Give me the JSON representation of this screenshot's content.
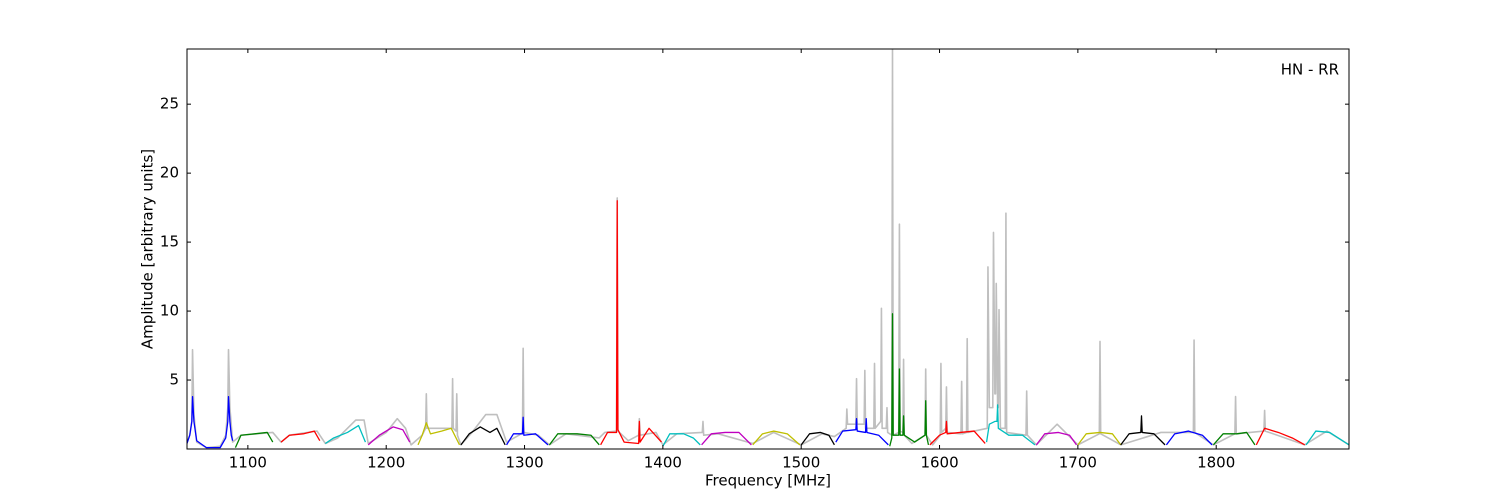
{
  "chart_data": {
    "type": "line",
    "annotation": "HN - RR",
    "xlabel": "Frequency [MHz]",
    "ylabel": "Amplitude [arbitrary units]",
    "xlim": [
      1056,
      1896
    ],
    "xticks": [
      1100,
      1200,
      1300,
      1400,
      1500,
      1600,
      1700,
      1800
    ],
    "ylim": [
      0,
      29
    ],
    "yticks": [
      5,
      10,
      15,
      20,
      25
    ],
    "grid": false,
    "series": [
      {
        "color": "#bfbfbf",
        "x": [
          1056,
          1058,
          1059.5,
          1060,
          1061,
          1063,
          1070,
          1080,
          1084,
          1085.5,
          1086,
          1087,
          1089,
          1095,
          1118,
          1124,
          1130,
          1150,
          1156,
          1165,
          1178,
          1184,
          1187,
          1200,
          1208,
          1214,
          1218,
          1226,
          1228.5,
          1229,
          1229.5,
          1238,
          1247.5,
          1248,
          1248.5,
          1250.5,
          1251,
          1251.5,
          1254,
          1262,
          1272,
          1280,
          1287,
          1296,
          1298.5,
          1299,
          1299.5,
          1310,
          1318,
          1330,
          1354,
          1358,
          1366.5,
          1367,
          1367.5,
          1375,
          1382.5,
          1383,
          1383.5,
          1395,
          1400,
          1410,
          1428.5,
          1429,
          1429.5,
          1440,
          1465,
          1480,
          1500,
          1515,
          1524,
          1532.5,
          1533,
          1533.5,
          1539.5,
          1540,
          1540.5,
          1545.5,
          1546,
          1546.5,
          1552.5,
          1553,
          1553.5,
          1557.5,
          1558,
          1558.5,
          1561.5,
          1562,
          1562.5,
          1565.5,
          1566,
          1566.5,
          1570.5,
          1571,
          1571.5,
          1573.5,
          1574,
          1574.5,
          1580,
          1589.5,
          1590,
          1590.5,
          1595,
          1600.5,
          1601,
          1601.5,
          1604.5,
          1605,
          1605.5,
          1615.5,
          1616,
          1616.5,
          1619.5,
          1620,
          1620.5,
          1634.5,
          1635,
          1636,
          1638.5,
          1639,
          1640,
          1640.5,
          1641,
          1642,
          1642.5,
          1643,
          1644,
          1647.5,
          1648,
          1648.5,
          1662.5,
          1663,
          1663.5,
          1670,
          1685,
          1700,
          1715.5,
          1716,
          1716.5,
          1731,
          1760,
          1783.5,
          1784,
          1784.5,
          1798,
          1813.5,
          1814,
          1814.5,
          1834.5,
          1835,
          1835.5,
          1864,
          1880,
          1896
        ],
        "values": [
          0.5,
          1,
          2,
          7.2,
          2.5,
          0.5,
          0.1,
          0.2,
          1,
          3,
          7.2,
          3,
          0.5,
          1,
          1.2,
          0.5,
          1,
          1.3,
          0.4,
          0.8,
          2.1,
          2.1,
          0.4,
          1.2,
          2.2,
          1.5,
          0.3,
          1,
          1.5,
          4,
          1.5,
          1.5,
          1.5,
          5.1,
          1.5,
          1.3,
          4,
          1,
          0.3,
          1.2,
          2.5,
          2.5,
          0.5,
          1,
          1.2,
          7.3,
          1.2,
          1,
          0.3,
          1.1,
          0.8,
          1.2,
          1.3,
          18.2,
          1.3,
          0.6,
          1,
          2.2,
          1,
          1.2,
          0.3,
          1.1,
          1.2,
          2,
          1,
          1.1,
          0.4,
          1.2,
          0.3,
          1.1,
          0.9,
          1.5,
          2.9,
          1.8,
          1.8,
          5.1,
          1.8,
          1.8,
          5.7,
          1.5,
          1.5,
          6.2,
          1.5,
          2,
          10.2,
          1.5,
          1.5,
          3,
          1.2,
          1,
          29,
          1,
          1.2,
          16.3,
          1.3,
          1.2,
          6.5,
          1,
          0.4,
          1,
          5.8,
          1,
          0.3,
          1,
          6.2,
          1.2,
          1.5,
          4.5,
          1.2,
          1.1,
          4.9,
          1.1,
          1.2,
          8,
          1.2,
          1.5,
          13.2,
          3,
          3,
          15.7,
          4,
          4,
          12,
          3,
          3,
          10.1,
          1.5,
          1.5,
          17.1,
          1.2,
          1,
          4.2,
          1,
          0.3,
          1.8,
          0.3,
          1.1,
          7.8,
          1.1,
          0.3,
          1.2,
          1.2,
          7.9,
          1.2,
          0.3,
          1.1,
          3.8,
          1.1,
          1.3,
          2.8,
          1.3,
          0.3,
          1.3,
          0.3
        ]
      },
      {
        "color": "#0000ff",
        "x": [
          1056,
          1058,
          1059.5,
          1060,
          1061,
          1063,
          1070,
          1080,
          1084,
          1085.5,
          1086,
          1087,
          1088,
          1089
        ],
        "values": [
          0.4,
          1,
          2,
          3.8,
          2,
          0.6,
          0.1,
          0.1,
          0.8,
          2,
          3.8,
          2,
          1,
          0.6
        ]
      },
      {
        "color": "#008000",
        "x": [
          1091,
          1095,
          1105,
          1114,
          1118
        ],
        "values": [
          0.1,
          1,
          1.1,
          1.2,
          0.5
        ]
      },
      {
        "color": "#ff0000",
        "x": [
          1124,
          1130,
          1140,
          1148,
          1152
        ],
        "values": [
          0.5,
          1,
          1.1,
          1.3,
          0.6
        ]
      },
      {
        "color": "#00bfbf",
        "x": [
          1156,
          1162,
          1172,
          1180,
          1185
        ],
        "values": [
          0.4,
          0.8,
          1.2,
          1.7,
          0.5
        ]
      },
      {
        "color": "#bf00bf",
        "x": [
          1187,
          1195,
          1205,
          1212,
          1217
        ],
        "values": [
          0.3,
          1,
          1.6,
          1.4,
          0.5
        ]
      },
      {
        "color": "#bfbf00",
        "x": [
          1223,
          1226,
          1229,
          1232,
          1240,
          1247,
          1253
        ],
        "values": [
          0.3,
          1,
          1.9,
          1.1,
          1.3,
          1.5,
          0.3
        ]
      },
      {
        "color": "#000000",
        "x": [
          1254,
          1260,
          1268,
          1275,
          1280,
          1286
        ],
        "values": [
          0.3,
          1.1,
          1.6,
          1.2,
          1.5,
          0.3
        ]
      },
      {
        "color": "#0000ff",
        "x": [
          1287,
          1292,
          1298.5,
          1299,
          1299.5,
          1308,
          1317
        ],
        "values": [
          0.3,
          1.1,
          1.1,
          2.3,
          1,
          1.1,
          0.3
        ]
      },
      {
        "color": "#008000",
        "x": [
          1318,
          1324,
          1338,
          1348,
          1354
        ],
        "values": [
          0.3,
          1.1,
          1.1,
          1,
          0.3
        ]
      },
      {
        "color": "#ff0000",
        "x": [
          1355,
          1360,
          1366.5,
          1367,
          1367.5,
          1372,
          1382.5,
          1383,
          1383.5,
          1390,
          1399
        ],
        "values": [
          0.3,
          1.2,
          1.2,
          18,
          1.4,
          0.5,
          0.4,
          2,
          0.5,
          1.5,
          0.5
        ]
      },
      {
        "color": "#00bfbf",
        "x": [
          1400,
          1405,
          1415,
          1422,
          1427
        ],
        "values": [
          0.2,
          1.1,
          1.1,
          0.8,
          0.3
        ]
      },
      {
        "color": "#bf00bf",
        "x": [
          1428,
          1435,
          1445,
          1455,
          1464
        ],
        "values": [
          0.3,
          1.1,
          1.2,
          1.2,
          0.3
        ]
      },
      {
        "color": "#bfbf00",
        "x": [
          1465,
          1472,
          1480,
          1490,
          1499
        ],
        "values": [
          0.3,
          1.1,
          1.3,
          1.1,
          0.3
        ]
      },
      {
        "color": "#000000",
        "x": [
          1500,
          1506,
          1514,
          1520,
          1524
        ],
        "values": [
          0.3,
          1.1,
          1.2,
          1,
          0.3
        ]
      },
      {
        "color": "#0000ff",
        "x": [
          1525,
          1530,
          1539.5,
          1540,
          1540.5,
          1546.5,
          1547,
          1547.5,
          1556,
          1563
        ],
        "values": [
          0.5,
          1.3,
          1.4,
          2.2,
          1.3,
          1.2,
          2.2,
          1.2,
          1,
          0.3
        ]
      },
      {
        "color": "#008000",
        "x": [
          1564,
          1565.5,
          1566,
          1566.5,
          1570.5,
          1571,
          1571.5,
          1573.5,
          1574,
          1574.5,
          1582,
          1589.5,
          1590,
          1590.5,
          1592
        ],
        "values": [
          0.2,
          0.8,
          9.8,
          1,
          1,
          5.8,
          1,
          1,
          2.4,
          1,
          0.5,
          1,
          3.5,
          1,
          0.3
        ]
      },
      {
        "color": "#ff0000",
        "x": [
          1593,
          1600,
          1604.5,
          1605,
          1605.5,
          1615,
          1625,
          1633
        ],
        "values": [
          0.3,
          1,
          1.2,
          2,
          1.1,
          1.2,
          1.3,
          0.4
        ]
      },
      {
        "color": "#00bfbf",
        "x": [
          1634,
          1636,
          1640,
          1641.5,
          1642,
          1642.5,
          1650,
          1660,
          1669
        ],
        "values": [
          0.5,
          1.8,
          2,
          2,
          3.2,
          1.5,
          1,
          1,
          0.3
        ]
      },
      {
        "color": "#bf00bf",
        "x": [
          1670,
          1676,
          1686,
          1694,
          1699
        ],
        "values": [
          0.3,
          1.1,
          1.2,
          1,
          0.3
        ]
      },
      {
        "color": "#bfbf00",
        "x": [
          1700,
          1706,
          1716,
          1725,
          1731
        ],
        "values": [
          0.3,
          1.1,
          1.2,
          1.1,
          0.3
        ]
      },
      {
        "color": "#000000",
        "x": [
          1731,
          1737,
          1745.5,
          1746,
          1746.5,
          1755,
          1763
        ],
        "values": [
          0.3,
          1.1,
          1.2,
          2.4,
          1.2,
          1.1,
          0.3
        ]
      },
      {
        "color": "#0000ff",
        "x": [
          1764,
          1770,
          1780,
          1790,
          1797
        ],
        "values": [
          0.3,
          1.1,
          1.3,
          1,
          0.3
        ]
      },
      {
        "color": "#008000",
        "x": [
          1798,
          1805,
          1815,
          1822,
          1828
        ],
        "values": [
          0.3,
          1.1,
          1.1,
          1.2,
          0.3
        ]
      },
      {
        "color": "#ff0000",
        "x": [
          1829,
          1835,
          1845,
          1855,
          1864
        ],
        "values": [
          0.3,
          1.5,
          1.2,
          0.8,
          0.3
        ]
      },
      {
        "color": "#00bfbf",
        "x": [
          1865,
          1872,
          1882,
          1896
        ],
        "values": [
          0.3,
          1.3,
          1.2,
          0.3
        ]
      }
    ]
  }
}
